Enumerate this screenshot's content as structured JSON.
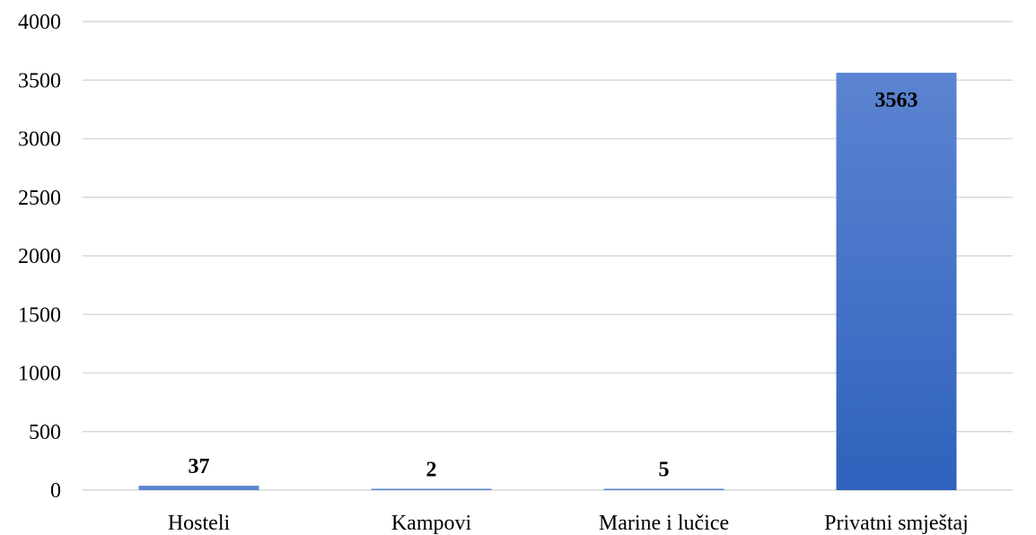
{
  "chart_data": {
    "type": "bar",
    "title": "",
    "xlabel": "",
    "ylabel": "",
    "categories": [
      "Hosteli",
      "Kampovi",
      "Marine i lučice",
      "Privatni smještaj"
    ],
    "values": [
      37,
      2,
      5,
      3563
    ],
    "data_labels": [
      "37",
      "2",
      "5",
      "3563"
    ],
    "ylim": [
      0,
      4000
    ],
    "yticks": [
      0,
      500,
      1000,
      1500,
      2000,
      2500,
      3000,
      3500,
      4000
    ],
    "ytick_labels": [
      "0",
      "500",
      "1000",
      "1500",
      "2000",
      "2500",
      "3000",
      "3500",
      "4000"
    ],
    "grid": true,
    "legend": "none",
    "colors": {
      "bar_top": "#5b84d1",
      "bar_bottom": "#2f62bd",
      "grid": "#d9d9d9",
      "text": "#000000"
    }
  }
}
